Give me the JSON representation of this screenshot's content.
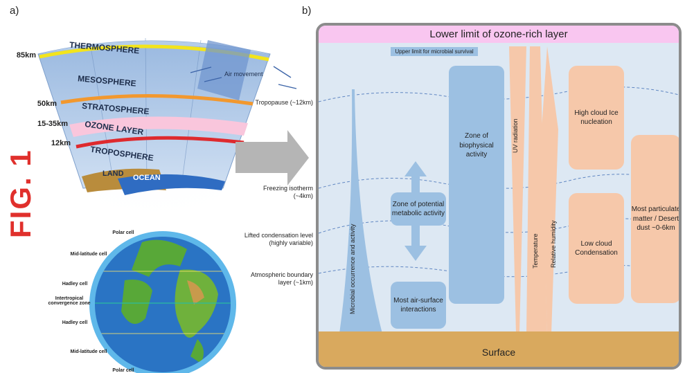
{
  "panels": {
    "a": "a)",
    "b": "b)"
  },
  "fig_title": "FIG. 1",
  "atmosphere": {
    "layers": [
      "THERMOSPHERE",
      "MESOSPHERE",
      "STRATOSPHERE",
      "OZONE LAYER",
      "TROPOSPHERE",
      "LAND",
      "OCEAN"
    ],
    "air_movement": "Air movement",
    "altitudes": [
      "85km",
      "50km",
      "15-35km",
      "12km"
    ]
  },
  "globe": {
    "cells": [
      "Polar cell",
      "Mid-latitude cell",
      "Hadley cell",
      "Intertropical convergence zone",
      "Hadley cell",
      "Mid-latitude cell",
      "Polar cell"
    ]
  },
  "levels": {
    "tropopause": "Tropopause (~12km)",
    "freezing": "Freezing isotherm (~4km)",
    "lcl": "Lifted condensation level (highly variable)",
    "boundary": "Atmospheric boundary layer (~1km)"
  },
  "diagram": {
    "top_bar": "Lower limit of ozone-rich layer",
    "microbial_limit": "Upper limit for microbial survival",
    "microbial_occurrence": "Microbial occurrence and activity",
    "zone_potential": "Zone of potential metabolic activity",
    "zone_biophysical": "Zone of biophysical activity",
    "air_surface": "Most air-surface interactions",
    "uv": "UV radiation",
    "temperature": "Temperature",
    "humidity": "Relative humidity",
    "high_cloud": "High cloud Ice nucleation",
    "low_cloud": "Low cloud Condensation",
    "particulate": "Most particulate matter / Desert dust ~0-6km",
    "surface": "Surface"
  },
  "colors": {
    "panel_bg": "#dde8f3",
    "ozone_bar": "#f9c6f0",
    "blue_box": "#9cc0e2",
    "peach_box": "#f6c8aa",
    "surface": "#d9a95e",
    "fig_red": "#e0302c"
  }
}
